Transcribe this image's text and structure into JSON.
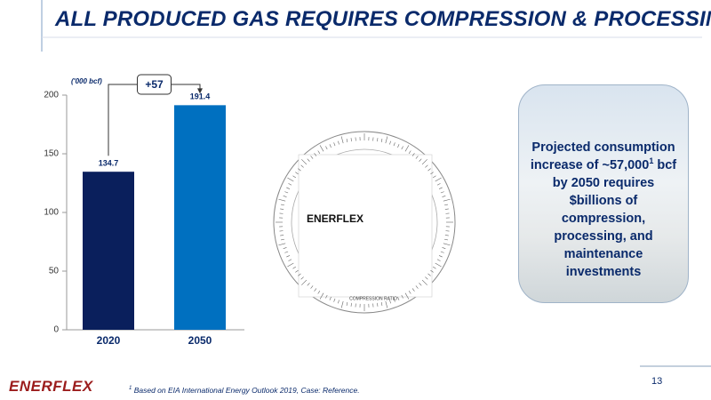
{
  "title": "ALL PRODUCED GAS REQUIRES COMPRESSION & PROCESSING",
  "chart_data": {
    "type": "bar",
    "y_label": "('000 bcf)",
    "categories": [
      "2020",
      "2050"
    ],
    "values": [
      134.7,
      191.4
    ],
    "colors": [
      "#0a1f5c",
      "#0070c0"
    ],
    "ylim": [
      0,
      200
    ],
    "yticks": [
      0,
      50,
      100,
      150,
      200
    ],
    "annotations": [
      "+57"
    ]
  },
  "wheel": {
    "brand": "ENERFLEX",
    "label": "COMPRESSION RATIO"
  },
  "callout": {
    "text_before": "Projected consumption increase of ~57,000",
    "superscript": "1",
    "text_after": " bcf by 2050 requires $billions of compression, processing, and maintenance investments"
  },
  "footnote": {
    "marker": "1",
    "text": " Based on EIA International Energy Outlook 2019, Case: Reference."
  },
  "page_number": "13",
  "logo": "ENERFLEX"
}
